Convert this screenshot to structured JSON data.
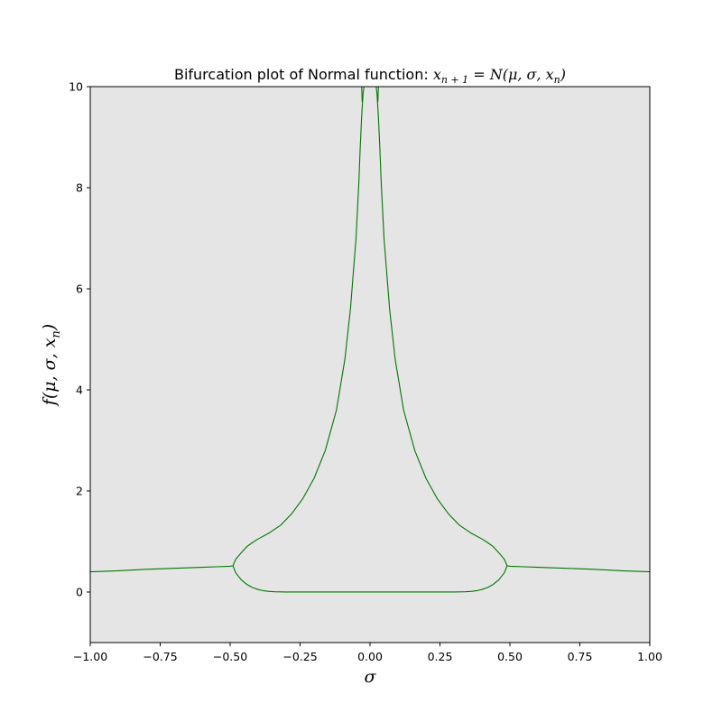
{
  "chart_data": {
    "type": "line",
    "title_prefix": "Bifurcation plot of Normal function: ",
    "title_math": "x",
    "title_math_sub": "n + 1",
    "title_math_rest": " = N(μ, σ,  x",
    "title_math_sub2": "n",
    "title_math_end": ")",
    "xlabel": "σ",
    "ylabel": "f(μ, σ,  xn)",
    "ylabel_main": "f(μ, σ,  x",
    "ylabel_sub": "n",
    "ylabel_end": ")",
    "xlim": [
      -1.0,
      1.0
    ],
    "ylim": [
      -1.0,
      10.0
    ],
    "x_ticks": [
      -1.0,
      -0.75,
      -0.5,
      -0.25,
      0.0,
      0.25,
      0.5,
      0.75,
      1.0
    ],
    "x_tick_labels": [
      "−1.00",
      "−0.75",
      "−0.50",
      "−0.25",
      "0.00",
      "0.25",
      "0.50",
      "0.75",
      "1.00"
    ],
    "y_ticks": [
      0,
      2,
      4,
      6,
      8,
      10
    ],
    "y_tick_labels": [
      "0",
      "2",
      "4",
      "6",
      "8",
      "10"
    ],
    "grid": false,
    "background": "#e5e5e5",
    "series_color": "#007700",
    "series": [
      {
        "name": "",
        "x": [
          -1.0,
          -0.9,
          -0.8,
          -0.7,
          -0.6,
          -0.55,
          -0.5,
          -0.49
        ],
        "y": [
          0.4,
          0.42,
          0.45,
          0.47,
          0.49,
          0.5,
          0.51,
          0.52
        ]
      },
      {
        "name": "",
        "x": [
          0.49,
          0.5,
          0.55,
          0.6,
          0.7,
          0.8,
          0.9,
          1.0
        ],
        "y": [
          0.52,
          0.51,
          0.5,
          0.49,
          0.47,
          0.45,
          0.42,
          0.4
        ]
      },
      {
        "name": "",
        "x": [
          -0.49,
          -0.48,
          -0.46,
          -0.44,
          -0.42,
          -0.4,
          -0.36,
          -0.32,
          -0.28,
          -0.24,
          -0.2,
          -0.16,
          -0.12,
          -0.09,
          -0.07,
          -0.05,
          -0.04,
          -0.035,
          -0.03,
          -0.025,
          -0.022
        ],
        "y": [
          0.52,
          0.65,
          0.78,
          0.9,
          0.98,
          1.05,
          1.17,
          1.32,
          1.55,
          1.85,
          2.25,
          2.8,
          3.6,
          4.6,
          5.6,
          7.0,
          8.1,
          8.8,
          9.4,
          9.85,
          10.0
        ]
      },
      {
        "name": "",
        "x": [
          0.022,
          0.025,
          0.03,
          0.035,
          0.04,
          0.05,
          0.07,
          0.09,
          0.12,
          0.16,
          0.2,
          0.24,
          0.28,
          0.32,
          0.36,
          0.4,
          0.42,
          0.44,
          0.46,
          0.48,
          0.49
        ],
        "y": [
          10.0,
          9.85,
          9.4,
          8.8,
          8.1,
          7.0,
          5.6,
          4.6,
          3.6,
          2.8,
          2.25,
          1.85,
          1.55,
          1.32,
          1.17,
          1.05,
          0.98,
          0.9,
          0.78,
          0.65,
          0.52
        ]
      },
      {
        "name": "",
        "x": [
          -0.49,
          -0.48,
          -0.46,
          -0.44,
          -0.42,
          -0.4,
          -0.38,
          -0.36,
          -0.34,
          -0.3,
          -0.2,
          0.0,
          0.2,
          0.3,
          0.34,
          0.36,
          0.38,
          0.4,
          0.42,
          0.44,
          0.46,
          0.48,
          0.49
        ],
        "y": [
          0.52,
          0.38,
          0.24,
          0.15,
          0.09,
          0.05,
          0.025,
          0.012,
          0.005,
          0.002,
          0.002,
          0.002,
          0.002,
          0.002,
          0.005,
          0.012,
          0.025,
          0.05,
          0.09,
          0.15,
          0.24,
          0.38,
          0.52
        ]
      },
      {
        "name": "",
        "x": [
          -0.03,
          -0.028
        ],
        "y": [
          10.0,
          9.7
        ]
      },
      {
        "name": "",
        "x": [
          0.028,
          0.03
        ],
        "y": [
          9.7,
          10.0
        ]
      }
    ]
  }
}
